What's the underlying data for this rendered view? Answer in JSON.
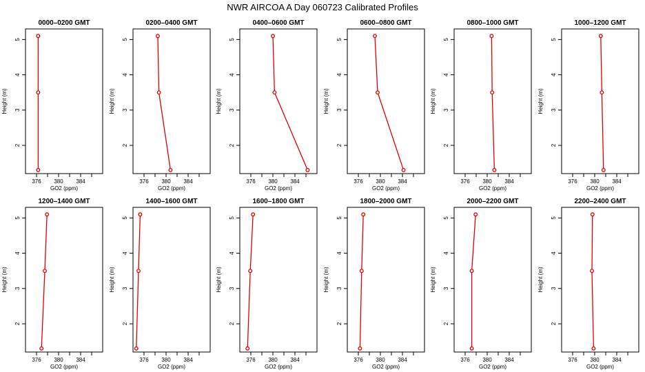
{
  "title": "NWR AIRCOA A  Day 060723  Calibrated Profiles",
  "colors": {
    "series": "#e00000",
    "axis": "#000000",
    "background": "#ffffff"
  },
  "chart_data": [
    {
      "type": "line",
      "title": "0000–0200 GMT",
      "xlabel": "GO2 (ppm)",
      "ylabel": "Height (m)",
      "xlim": [
        374,
        388
      ],
      "ylim": [
        1.2,
        5.3
      ],
      "x_ticks": [
        376,
        380,
        384
      ],
      "y_ticks": [
        2,
        3,
        4,
        5
      ],
      "series": [
        {
          "x": [
            376.3,
            376.3,
            376.3
          ],
          "y": [
            1.3,
            3.5,
            5.1
          ]
        }
      ]
    },
    {
      "type": "line",
      "title": "0200–0400 GMT",
      "xlabel": "GO2 (ppm)",
      "ylabel": "Height (m)",
      "xlim": [
        374,
        388
      ],
      "ylim": [
        1.2,
        5.3
      ],
      "x_ticks": [
        376,
        380,
        384
      ],
      "y_ticks": [
        2,
        3,
        4,
        5
      ],
      "series": [
        {
          "x": [
            380.8,
            378.7,
            378.5
          ],
          "y": [
            1.3,
            3.5,
            5.1
          ]
        }
      ]
    },
    {
      "type": "line",
      "title": "0400–0600 GMT",
      "xlabel": "GO2 (ppm)",
      "ylabel": "Height (m)",
      "xlim": [
        374,
        388
      ],
      "ylim": [
        1.2,
        5.3
      ],
      "x_ticks": [
        376,
        380,
        384
      ],
      "y_ticks": [
        2,
        3,
        4,
        5
      ],
      "series": [
        {
          "x": [
            386.3,
            380.3,
            380.0
          ],
          "y": [
            1.3,
            3.5,
            5.1
          ]
        }
      ]
    },
    {
      "type": "line",
      "title": "0600–0800 GMT",
      "xlabel": "GO2 (ppm)",
      "ylabel": "Height (m)",
      "xlim": [
        374,
        388
      ],
      "ylim": [
        1.2,
        5.3
      ],
      "x_ticks": [
        376,
        380,
        384
      ],
      "y_ticks": [
        2,
        3,
        4,
        5
      ],
      "series": [
        {
          "x": [
            384.2,
            379.5,
            379.0
          ],
          "y": [
            1.3,
            3.5,
            5.1
          ]
        }
      ]
    },
    {
      "type": "line",
      "title": "0800–1000 GMT",
      "xlabel": "GO2 (ppm)",
      "ylabel": "Height (m)",
      "xlim": [
        374,
        388
      ],
      "ylim": [
        1.2,
        5.3
      ],
      "x_ticks": [
        376,
        380,
        384
      ],
      "y_ticks": [
        2,
        3,
        4,
        5
      ],
      "series": [
        {
          "x": [
            381.3,
            380.9,
            380.8
          ],
          "y": [
            1.3,
            3.5,
            5.1
          ]
        }
      ]
    },
    {
      "type": "line",
      "title": "1000–1200 GMT",
      "xlabel": "GO2 (ppm)",
      "ylabel": "Height (m)",
      "xlim": [
        374,
        388
      ],
      "ylim": [
        1.2,
        5.3
      ],
      "x_ticks": [
        376,
        380,
        384
      ],
      "y_ticks": [
        2,
        3,
        4,
        5
      ],
      "series": [
        {
          "x": [
            381.6,
            381.3,
            381.1
          ],
          "y": [
            1.3,
            3.5,
            5.1
          ]
        }
      ]
    },
    {
      "type": "line",
      "title": "1200–1400 GMT",
      "xlabel": "GO2 (ppm)",
      "ylabel": "Height (m)",
      "xlim": [
        374,
        388
      ],
      "ylim": [
        1.2,
        5.3
      ],
      "x_ticks": [
        376,
        380,
        384
      ],
      "y_ticks": [
        2,
        3,
        4,
        5
      ],
      "series": [
        {
          "x": [
            376.9,
            377.5,
            377.9
          ],
          "y": [
            1.3,
            3.5,
            5.1
          ]
        }
      ]
    },
    {
      "type": "line",
      "title": "1400–1600 GMT",
      "xlabel": "GO2 (ppm)",
      "ylabel": "Height (m)",
      "xlim": [
        374,
        388
      ],
      "ylim": [
        1.2,
        5.3
      ],
      "x_ticks": [
        376,
        380,
        384
      ],
      "y_ticks": [
        2,
        3,
        4,
        5
      ],
      "series": [
        {
          "x": [
            374.6,
            375.0,
            375.3
          ],
          "y": [
            1.3,
            3.5,
            5.1
          ]
        }
      ]
    },
    {
      "type": "line",
      "title": "1600–1800 GMT",
      "xlabel": "GO2 (ppm)",
      "ylabel": "Height (m)",
      "xlim": [
        374,
        388
      ],
      "ylim": [
        1.2,
        5.3
      ],
      "x_ticks": [
        376,
        380,
        384
      ],
      "y_ticks": [
        2,
        3,
        4,
        5
      ],
      "series": [
        {
          "x": [
            375.4,
            375.9,
            376.4
          ],
          "y": [
            1.3,
            3.5,
            5.1
          ]
        }
      ]
    },
    {
      "type": "line",
      "title": "1800–2000 GMT",
      "xlabel": "GO2 (ppm)",
      "ylabel": "Height (m)",
      "xlim": [
        374,
        388
      ],
      "ylim": [
        1.2,
        5.3
      ],
      "x_ticks": [
        376,
        380,
        384
      ],
      "y_ticks": [
        2,
        3,
        4,
        5
      ],
      "series": [
        {
          "x": [
            376.3,
            376.6,
            376.9
          ],
          "y": [
            1.3,
            3.5,
            5.1
          ]
        }
      ]
    },
    {
      "type": "line",
      "title": "2000–2200 GMT",
      "xlabel": "GO2 (ppm)",
      "ylabel": "Height (m)",
      "xlim": [
        374,
        388
      ],
      "ylim": [
        1.2,
        5.3
      ],
      "x_ticks": [
        376,
        380,
        384
      ],
      "y_ticks": [
        2,
        3,
        4,
        5
      ],
      "series": [
        {
          "x": [
            377.2,
            377.2,
            377.9
          ],
          "y": [
            1.3,
            3.5,
            5.1
          ]
        }
      ]
    },
    {
      "type": "line",
      "title": "2200–2400 GMT",
      "xlabel": "GO2 (ppm)",
      "ylabel": "Height (m)",
      "xlim": [
        374,
        388
      ],
      "ylim": [
        1.2,
        5.3
      ],
      "x_ticks": [
        376,
        380,
        384
      ],
      "y_ticks": [
        2,
        3,
        4,
        5
      ],
      "series": [
        {
          "x": [
            379.8,
            379.5,
            379.6
          ],
          "y": [
            1.3,
            3.5,
            5.1
          ]
        }
      ]
    }
  ]
}
